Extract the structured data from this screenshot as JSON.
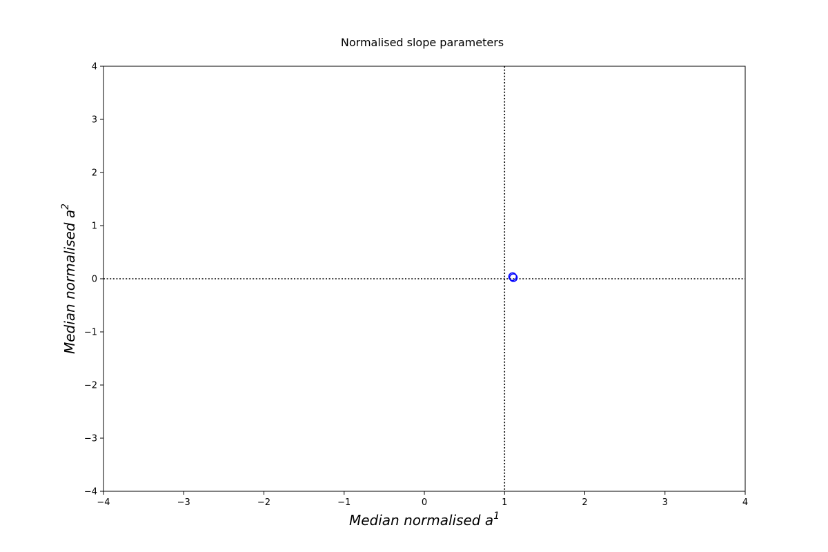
{
  "chart_data": {
    "type": "scatter",
    "title": "Normalised slope parameters",
    "xlabel": "Median normalised a",
    "xlabel_sup": "1",
    "ylabel": "Median normalised a",
    "ylabel_sup": "2",
    "xlim": [
      -4,
      4
    ],
    "ylim": [
      -4,
      4
    ],
    "xticks": [
      -4,
      -3,
      -2,
      -1,
      0,
      1,
      2,
      3,
      4
    ],
    "yticks": [
      -4,
      -3,
      -2,
      -1,
      0,
      1,
      2,
      3,
      4
    ],
    "grid": false,
    "reference_lines": {
      "vertical_x": 1,
      "horizontal_y": 0,
      "style": "dotted",
      "color": "#000000"
    },
    "series": [
      {
        "marker": "hollow-circle",
        "color": "#0000ff",
        "points": [
          {
            "x": 1.1,
            "y": 0.04
          },
          {
            "x": 1.11,
            "y": 0.02
          }
        ]
      }
    ]
  }
}
